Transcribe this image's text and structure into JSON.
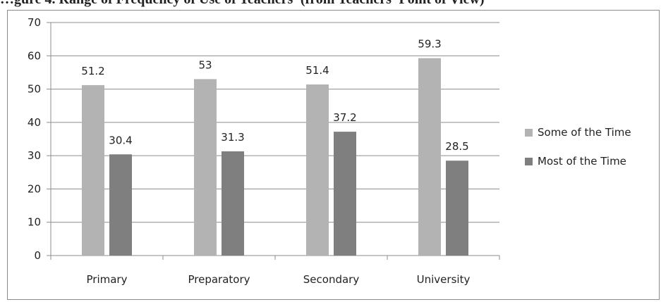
{
  "caption": "…gure 4. Range of Frequency of Use of Teachers' (from Teachers' Point of View)",
  "chart_data": {
    "type": "bar",
    "categories": [
      "Primary",
      "Preparatory",
      "Secondary",
      "University"
    ],
    "series": [
      {
        "name": "Some of the Time",
        "values": [
          51.2,
          53,
          51.4,
          59.3
        ],
        "color": "#b3b3b3"
      },
      {
        "name": "Most of the Time",
        "values": [
          30.4,
          31.3,
          37.2,
          28.5
        ],
        "color": "#7f7f7f"
      }
    ],
    "yticks": [
      0,
      10,
      20,
      30,
      40,
      50,
      60,
      70
    ],
    "ylim": [
      0,
      70
    ],
    "grid": true,
    "legend": "right",
    "title": "",
    "xlabel": "",
    "ylabel": ""
  }
}
